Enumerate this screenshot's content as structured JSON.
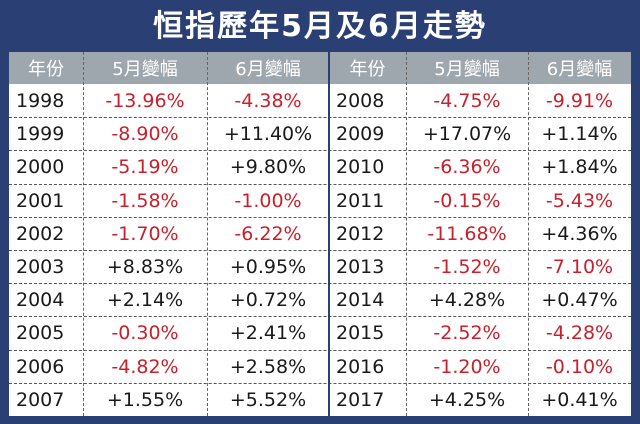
{
  "title": "恒指歷年5月及6月走勢",
  "chart_data": {
    "type": "table",
    "title": "恒指歷年5月及6月走勢",
    "columns": [
      "年份",
      "5月變幅",
      "6月變幅",
      "年份",
      "5月變幅",
      "6月變幅"
    ],
    "rows": [
      {
        "year": "1998",
        "may": "-13.96%",
        "jun": "-4.38%"
      },
      {
        "year": "1999",
        "may": "-8.90%",
        "jun": "+11.40%"
      },
      {
        "year": "2000",
        "may": "-5.19%",
        "jun": "+9.80%"
      },
      {
        "year": "2001",
        "may": "-1.58%",
        "jun": "-1.00%"
      },
      {
        "year": "2002",
        "may": "-1.70%",
        "jun": "-6.22%"
      },
      {
        "year": "2003",
        "may": "+8.83%",
        "jun": "+0.95%"
      },
      {
        "year": "2004",
        "may": "+2.14%",
        "jun": "+0.72%"
      },
      {
        "year": "2005",
        "may": "-0.30%",
        "jun": "+2.41%"
      },
      {
        "year": "2006",
        "may": "-4.82%",
        "jun": "+2.58%"
      },
      {
        "year": "2007",
        "may": "+1.55%",
        "jun": "+5.52%"
      },
      {
        "year": "2008",
        "may": "-4.75%",
        "jun": "-9.91%"
      },
      {
        "year": "2009",
        "may": "+17.07%",
        "jun": "+1.14%"
      },
      {
        "year": "2010",
        "may": "-6.36%",
        "jun": "+1.84%"
      },
      {
        "year": "2011",
        "may": "-0.15%",
        "jun": "-5.43%"
      },
      {
        "year": "2012",
        "may": "-11.68%",
        "jun": "+4.36%"
      },
      {
        "year": "2013",
        "may": "-1.52%",
        "jun": "-7.10%"
      },
      {
        "year": "2014",
        "may": "+4.28%",
        "jun": "+0.47%"
      },
      {
        "year": "2015",
        "may": "-2.52%",
        "jun": "-4.28%"
      },
      {
        "year": "2016",
        "may": "-1.20%",
        "jun": "-0.10%"
      },
      {
        "year": "2017",
        "may": "+4.25%",
        "jun": "+0.41%"
      }
    ]
  },
  "colors": {
    "background": "#2a3f73",
    "header": "#9fa7ae",
    "negative": "#c8202c",
    "positive": "#1a1a1a"
  }
}
